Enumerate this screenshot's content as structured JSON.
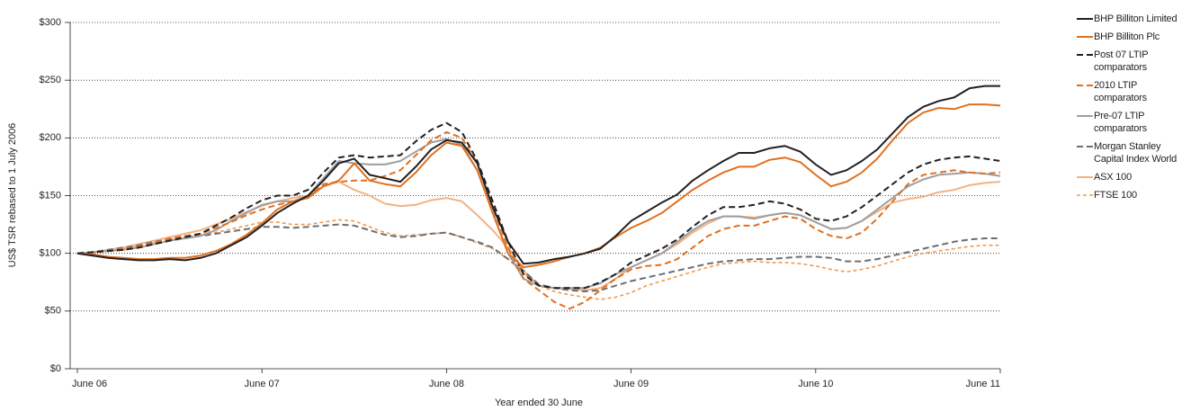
{
  "chart_data": {
    "type": "line",
    "y_axis_label": "US$ TSR rebased to 1 July 2006",
    "x_axis_label": "Year ended 30 June",
    "categories": [
      "June 06",
      null,
      null,
      null,
      null,
      null,
      null,
      null,
      null,
      null,
      null,
      null,
      "June 07",
      null,
      null,
      null,
      null,
      null,
      null,
      null,
      null,
      null,
      null,
      null,
      "June 08",
      null,
      null,
      null,
      null,
      null,
      null,
      null,
      null,
      null,
      null,
      null,
      "June 09",
      null,
      null,
      null,
      null,
      null,
      null,
      null,
      null,
      null,
      null,
      null,
      "June 10",
      null,
      null,
      null,
      null,
      null,
      null,
      null,
      null,
      null,
      null,
      null,
      "June 11"
    ],
    "ylim": [
      0,
      300
    ],
    "yticks": [
      {
        "value": 0,
        "label": "$0"
      },
      {
        "value": 50,
        "label": "$50"
      },
      {
        "value": 100,
        "label": "$100"
      },
      {
        "value": 150,
        "label": "$150"
      },
      {
        "value": 200,
        "label": "$200"
      },
      {
        "value": 250,
        "label": "$250"
      },
      {
        "value": 300,
        "label": "$300"
      }
    ],
    "grid": true,
    "legend": "right",
    "series": [
      {
        "name": "BHP Billiton Limited",
        "color": "#231f20",
        "style": "solid",
        "values": [
          100,
          98,
          96,
          95,
          94,
          94,
          95,
          94,
          96,
          100,
          107,
          114,
          124,
          135,
          143,
          150,
          163,
          178,
          182,
          168,
          165,
          162,
          175,
          190,
          198,
          196,
          178,
          140,
          110,
          91,
          92,
          95,
          97,
          100,
          104,
          115,
          128,
          136,
          144,
          151,
          163,
          172,
          180,
          187,
          187,
          191,
          193,
          188,
          177,
          168,
          172,
          180,
          190,
          204,
          218,
          227,
          232,
          235,
          243,
          245,
          245
        ]
      },
      {
        "name": "BHP Billiton Plc",
        "color": "#e0701f",
        "style": "solid",
        "values": [
          100,
          99,
          97,
          96,
          95,
          95,
          96,
          96,
          98,
          102,
          108,
          116,
          126,
          138,
          145,
          148,
          158,
          163,
          178,
          163,
          160,
          158,
          170,
          185,
          196,
          193,
          172,
          135,
          100,
          88,
          90,
          93,
          97,
          100,
          105,
          114,
          122,
          128,
          135,
          145,
          155,
          163,
          170,
          175,
          175,
          181,
          183,
          179,
          168,
          158,
          162,
          170,
          182,
          198,
          213,
          222,
          226,
          225,
          229,
          229,
          228
        ]
      },
      {
        "name": "Post 07 LTIP comparators",
        "color": "#231f20",
        "style": "dashed",
        "values": [
          100,
          101,
          102,
          103,
          105,
          108,
          111,
          114,
          117,
          124,
          131,
          139,
          146,
          150,
          150,
          155,
          170,
          183,
          185,
          183,
          184,
          185,
          197,
          207,
          213,
          205,
          180,
          145,
          110,
          82,
          72,
          70,
          70,
          70,
          75,
          82,
          92,
          98,
          104,
          112,
          123,
          133,
          140,
          140,
          142,
          145,
          143,
          138,
          130,
          128,
          132,
          140,
          150,
          160,
          170,
          177,
          181,
          183,
          184,
          182,
          180
        ]
      },
      {
        "name": "2010 LTIP comparators",
        "color": "#e0701f",
        "style": "dashed",
        "values": [
          100,
          101,
          102,
          104,
          106,
          109,
          113,
          115,
          117,
          122,
          127,
          133,
          138,
          142,
          145,
          148,
          160,
          162,
          163,
          163,
          167,
          172,
          185,
          198,
          205,
          200,
          178,
          140,
          105,
          78,
          68,
          58,
          52,
          58,
          68,
          78,
          86,
          89,
          90,
          95,
          105,
          115,
          121,
          124,
          124,
          128,
          132,
          130,
          121,
          115,
          113,
          118,
          130,
          145,
          160,
          168,
          170,
          172,
          170,
          169,
          170
        ]
      },
      {
        "name": "Pre-07 LTIP comparators",
        "color": "#9d9fa2",
        "style": "solid",
        "values": [
          100,
          101,
          102,
          103,
          105,
          108,
          111,
          113,
          115,
          120,
          128,
          135,
          142,
          145,
          145,
          150,
          165,
          180,
          178,
          177,
          177,
          180,
          188,
          196,
          199,
          194,
          172,
          135,
          100,
          78,
          72,
          70,
          70,
          70,
          74,
          82,
          88,
          94,
          100,
          110,
          120,
          128,
          132,
          132,
          130,
          133,
          135,
          133,
          127,
          121,
          122,
          128,
          138,
          148,
          158,
          164,
          168,
          169,
          170,
          169,
          167
        ]
      },
      {
        "name": "Morgan Stanley Capital Index World",
        "color": "#6d6e71",
        "style": "dashed",
        "values": [
          100,
          101,
          103,
          105,
          107,
          110,
          112,
          114,
          115,
          117,
          119,
          121,
          123,
          123,
          122,
          123,
          124,
          125,
          124,
          120,
          116,
          114,
          115,
          117,
          118,
          114,
          110,
          105,
          95,
          85,
          73,
          70,
          68,
          67,
          68,
          72,
          76,
          79,
          82,
          85,
          88,
          91,
          93,
          94,
          95,
          95,
          96,
          97,
          97,
          96,
          93,
          93,
          95,
          98,
          101,
          104,
          107,
          110,
          112,
          113,
          113
        ]
      },
      {
        "name": "ASX 100",
        "color": "#f3b283",
        "style": "solid",
        "values": [
          100,
          101,
          103,
          105,
          108,
          111,
          114,
          117,
          120,
          125,
          130,
          136,
          141,
          145,
          148,
          150,
          158,
          162,
          155,
          150,
          143,
          141,
          142,
          146,
          148,
          145,
          133,
          120,
          105,
          85,
          72,
          70,
          69,
          68,
          70,
          78,
          88,
          94,
          100,
          108,
          118,
          126,
          132,
          132,
          131,
          133,
          135,
          133,
          127,
          121,
          122,
          128,
          136,
          144,
          147,
          149,
          153,
          155,
          159,
          161,
          162
        ]
      },
      {
        "name": "FTSE 100",
        "color": "#ef9a52",
        "style": "dotted",
        "values": [
          100,
          101,
          102,
          104,
          106,
          109,
          112,
          114,
          116,
          118,
          121,
          124,
          127,
          127,
          125,
          125,
          127,
          129,
          128,
          123,
          118,
          115,
          116,
          117,
          118,
          114,
          109,
          104,
          95,
          83,
          72,
          67,
          64,
          62,
          60,
          62,
          66,
          72,
          76,
          80,
          84,
          88,
          91,
          92,
          93,
          92,
          92,
          91,
          89,
          86,
          84,
          86,
          89,
          93,
          97,
          100,
          102,
          104,
          106,
          107,
          107
        ]
      }
    ]
  }
}
